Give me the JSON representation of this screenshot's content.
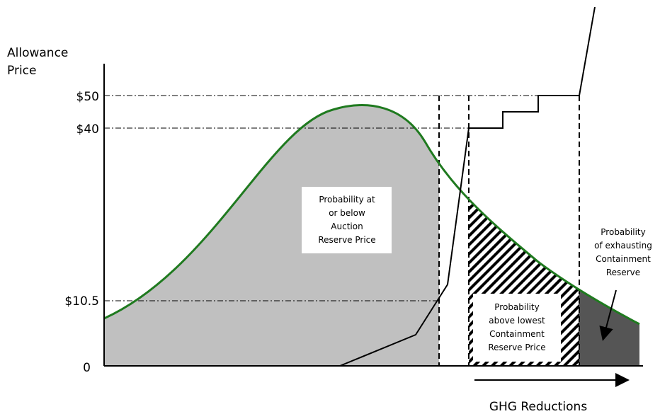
{
  "y_axis": {
    "label": [
      "Allowance",
      "Price"
    ],
    "ticks": [
      "$50",
      "$40",
      "$10.5",
      "0"
    ]
  },
  "x_axis": {
    "label": "GHG Reductions"
  },
  "annotations": {
    "below_reserve": [
      "Probability at",
      "or below",
      "Auction",
      "Reserve Price"
    ],
    "above_containment": [
      "Probability",
      "above lowest",
      "Containment",
      "Reserve Price"
    ],
    "exhausting": [
      "Probability",
      "of exhausting",
      "Containment",
      "Reserve"
    ]
  }
}
